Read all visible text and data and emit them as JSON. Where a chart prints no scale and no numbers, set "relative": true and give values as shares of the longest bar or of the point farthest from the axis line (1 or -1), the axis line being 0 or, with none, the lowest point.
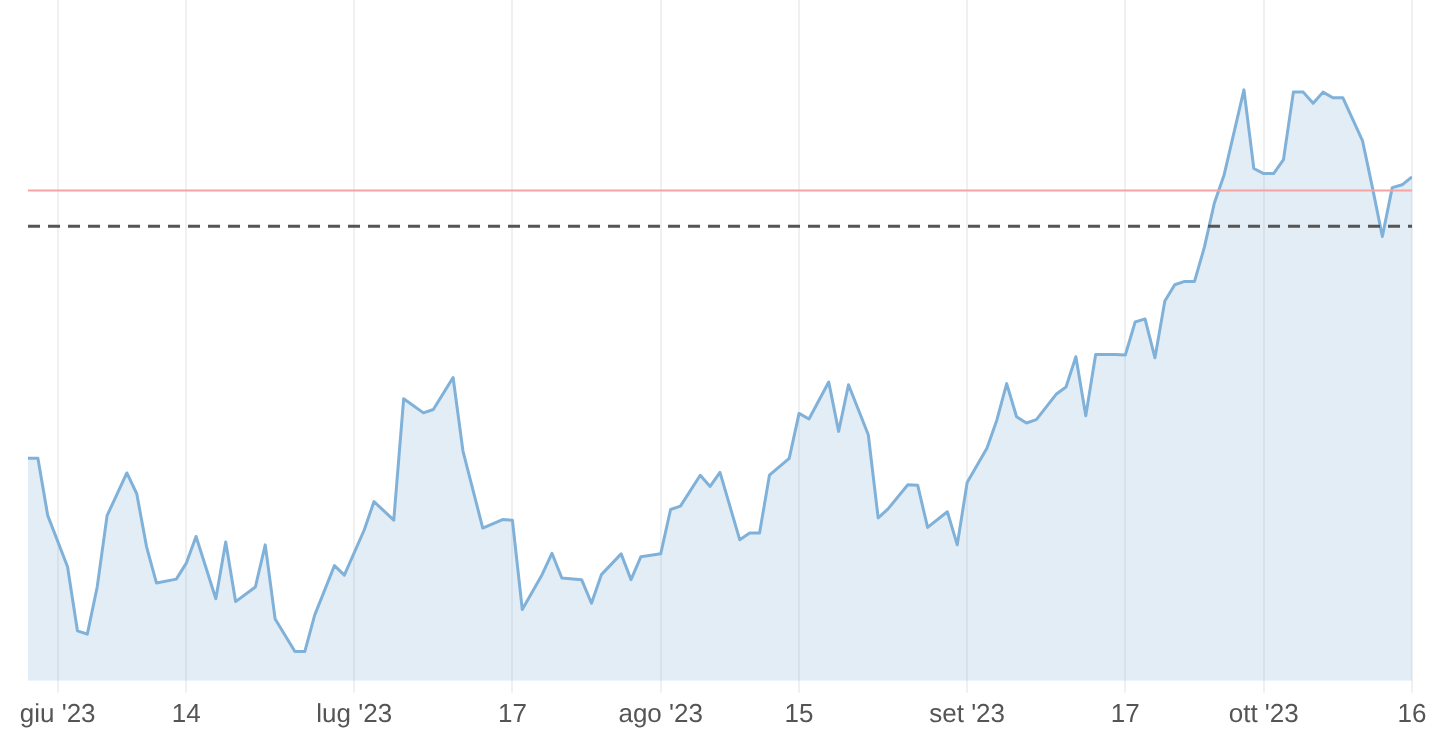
{
  "chart_data": {
    "type": "area",
    "relative": true,
    "grid": "x",
    "legend": false,
    "marker": "none",
    "line_style": "solid",
    "xlim": [
      "2023-05-29",
      "2023-10-16"
    ],
    "xticks": [
      {
        "value": "2023-06-01",
        "label": "giu '23"
      },
      {
        "value": "2023-06-14",
        "label": "14"
      },
      {
        "value": "2023-07-01",
        "label": "lug '23"
      },
      {
        "value": "2023-07-17",
        "label": "17"
      },
      {
        "value": "2023-08-01",
        "label": "ago '23"
      },
      {
        "value": "2023-08-15",
        "label": "15"
      },
      {
        "value": "2023-09-01",
        "label": "set '23"
      },
      {
        "value": "2023-09-17",
        "label": "17"
      },
      {
        "value": "2023-10-01",
        "label": "ott '23"
      },
      {
        "value": "2023-10-16",
        "label": "16"
      }
    ],
    "x": [
      "2023-05-29",
      "2023-05-30",
      "2023-05-31",
      "2023-06-02",
      "2023-06-03",
      "2023-06-04",
      "2023-06-05",
      "2023-06-06",
      "2023-06-08",
      "2023-06-09",
      "2023-06-10",
      "2023-06-11",
      "2023-06-13",
      "2023-06-14",
      "2023-06-15",
      "2023-06-17",
      "2023-06-18",
      "2023-06-19",
      "2023-06-21",
      "2023-06-22",
      "2023-06-23",
      "2023-06-25",
      "2023-06-26",
      "2023-06-27",
      "2023-06-29",
      "2023-06-30",
      "2023-07-02",
      "2023-07-03",
      "2023-07-05",
      "2023-07-06",
      "2023-07-08",
      "2023-07-09",
      "2023-07-11",
      "2023-07-12",
      "2023-07-14",
      "2023-07-16",
      "2023-07-17",
      "2023-07-18",
      "2023-07-20",
      "2023-07-21",
      "2023-07-22",
      "2023-07-24",
      "2023-07-25",
      "2023-07-26",
      "2023-07-28",
      "2023-07-29",
      "2023-07-30",
      "2023-08-01",
      "2023-08-02",
      "2023-08-03",
      "2023-08-05",
      "2023-08-06",
      "2023-08-07",
      "2023-08-09",
      "2023-08-10",
      "2023-08-11",
      "2023-08-12",
      "2023-08-14",
      "2023-08-15",
      "2023-08-16",
      "2023-08-18",
      "2023-08-19",
      "2023-08-20",
      "2023-08-22",
      "2023-08-23",
      "2023-08-24",
      "2023-08-26",
      "2023-08-27",
      "2023-08-28",
      "2023-08-30",
      "2023-08-31",
      "2023-09-01",
      "2023-09-03",
      "2023-09-04",
      "2023-09-05",
      "2023-09-06",
      "2023-09-07",
      "2023-09-08",
      "2023-09-10",
      "2023-09-11",
      "2023-09-12",
      "2023-09-13",
      "2023-09-14",
      "2023-09-16",
      "2023-09-17",
      "2023-09-18",
      "2023-09-19",
      "2023-09-20",
      "2023-09-21",
      "2023-09-22",
      "2023-09-23",
      "2023-09-24",
      "2023-09-25",
      "2023-09-26",
      "2023-09-27",
      "2023-09-29",
      "2023-09-30",
      "2023-10-01",
      "2023-10-02",
      "2023-10-03",
      "2023-10-04",
      "2023-10-05",
      "2023-10-06",
      "2023-10-07",
      "2023-10-08",
      "2023-10-09",
      "2023-10-11",
      "2023-10-12",
      "2023-10-13",
      "2023-10-14",
      "2023-10-15",
      "2023-10-16"
    ],
    "series": [
      {
        "color": "#80b1d9",
        "values": [
          0.344,
          0.344,
          0.242,
          0.151,
          0.037,
          0.031,
          0.115,
          0.242,
          0.318,
          0.281,
          0.186,
          0.122,
          0.129,
          0.157,
          0.205,
          0.094,
          0.195,
          0.089,
          0.115,
          0.19,
          0.058,
          0,
          0,
          0.065,
          0.153,
          0.136,
          0.216,
          0.267,
          0.234,
          0.45,
          0.425,
          0.431,
          0.488,
          0.357,
          0.22,
          0.235,
          0.234,
          0.075,
          0.137,
          0.175,
          0.131,
          0.128,
          0.086,
          0.137,
          0.174,
          0.128,
          0.169,
          0.174,
          0.253,
          0.259,
          0.314,
          0.294,
          0.319,
          0.199,
          0.211,
          0.211,
          0.314,
          0.344,
          0.424,
          0.414,
          0.48,
          0.392,
          0.475,
          0.386,
          0.238,
          0.254,
          0.297,
          0.296,
          0.221,
          0.249,
          0.19,
          0.301,
          0.362,
          0.412,
          0.477,
          0.418,
          0.407,
          0.413,
          0.458,
          0.471,
          0.525,
          0.42,
          0.529,
          0.529,
          0.528,
          0.587,
          0.592,
          0.523,
          0.624,
          0.653,
          0.659,
          0.659,
          0.72,
          0.798,
          0.849,
          1,
          0.86,
          0.851,
          0.851,
          0.876,
          0.996,
          0.996,
          0.976,
          0.996,
          0.986,
          0.986,
          0.909,
          0.826,
          0.739,
          0.826,
          0.831,
          0.845
        ]
      }
    ],
    "ref_lines": [
      {
        "axis": "y",
        "value": 0.821,
        "color": "#f5a3a3",
        "line_style": "solid"
      },
      {
        "axis": "y",
        "value": 0.757,
        "color": "#555555",
        "line_style": "dashed"
      }
    ]
  }
}
